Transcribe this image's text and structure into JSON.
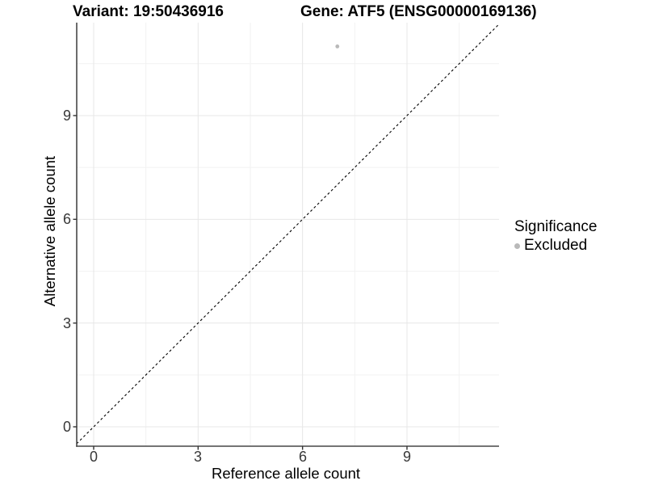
{
  "header": {
    "title_left": "Variant: 19:50436916",
    "title_right": "Gene: ATF5 (ENSG00000169136)"
  },
  "chart_data": {
    "type": "scatter",
    "xlabel": "Reference allele count",
    "ylabel": "Alternative allele count",
    "xlim": [
      -0.49,
      11.65
    ],
    "ylim": [
      -0.56,
      11.68
    ],
    "x_ticks": [
      0,
      3,
      6,
      9
    ],
    "y_ticks": [
      0,
      3,
      6,
      9
    ],
    "x_minor_ticks": [
      1.5,
      4.5,
      7.5,
      10.5
    ],
    "y_minor_ticks": [
      1.5,
      4.5,
      7.5,
      10.5
    ],
    "grid": true,
    "series": [
      {
        "name": "Excluded",
        "color": "#b9b9b9",
        "points": [
          {
            "x": 7,
            "y": 11
          }
        ]
      }
    ],
    "reference_line": {
      "slope": 1,
      "intercept": 0,
      "style": "dashed",
      "color": "#000000"
    },
    "legend": {
      "title": "Significance",
      "position": "right",
      "items": [
        {
          "label": "Excluded",
          "color": "#b9b9b9"
        }
      ]
    }
  },
  "colors": {
    "background": "#ffffff",
    "grid_major": "#e7e7e7",
    "grid_minor": "#f2f2f2",
    "axis_line": "#474747",
    "tick_mark": "#333333",
    "tick_label": "#383838",
    "point": "#b9b9b9"
  }
}
